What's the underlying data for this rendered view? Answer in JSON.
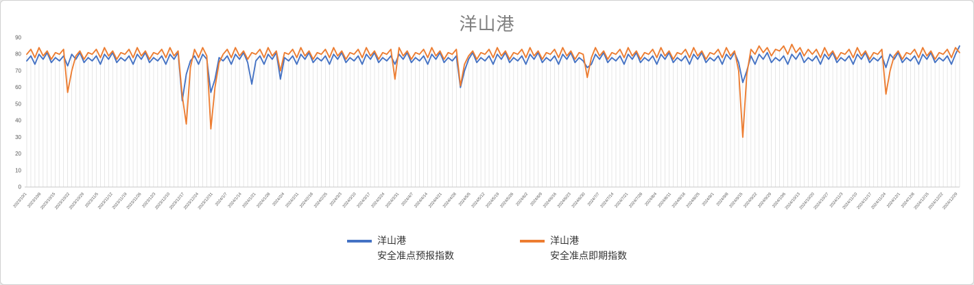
{
  "chart_data": {
    "type": "line",
    "title": "洋山港",
    "xlabel": "",
    "ylabel": "",
    "ylim": [
      0,
      90
    ],
    "y_ticks": [
      0,
      10,
      20,
      30,
      40,
      50,
      60,
      70,
      80,
      90
    ],
    "grid": "vertical-drop-lines-only",
    "legend_position": "bottom",
    "x_start": "2023/10/1",
    "x_step_days": 2,
    "x_tick_labels": [
      "2023/10/1",
      "2023/10/8",
      "2023/10/15",
      "2023/10/22",
      "2023/10/29",
      "2023/11/5",
      "2023/11/12",
      "2023/11/19",
      "2023/11/26",
      "2023/12/3",
      "2023/12/10",
      "2023/12/17",
      "2023/12/24",
      "2023/12/31",
      "2024/1/7",
      "2024/1/14",
      "2024/1/21",
      "2024/1/28",
      "2024/2/4",
      "2024/2/11",
      "2024/2/18",
      "2024/2/25",
      "2024/3/3",
      "2024/3/10",
      "2024/3/17",
      "2024/3/24",
      "2024/3/31",
      "2024/4/7",
      "2024/4/14",
      "2024/4/21",
      "2024/4/28",
      "2024/5/5",
      "2024/5/12",
      "2024/5/19",
      "2024/5/26",
      "2024/6/2",
      "2024/6/9",
      "2024/6/16",
      "2024/6/23",
      "2024/6/30",
      "2024/7/7",
      "2024/7/14",
      "2024/7/21",
      "2024/7/28",
      "2024/8/4",
      "2024/8/11",
      "2024/8/18",
      "2024/8/25",
      "2024/9/1",
      "2024/9/8",
      "2024/9/15",
      "2024/9/22",
      "2024/9/29",
      "2024/10/6",
      "2024/10/13",
      "2024/10/20",
      "2024/10/27",
      "2024/11/3",
      "2024/11/10",
      "2024/11/17",
      "2024/11/24",
      "2024/12/1",
      "2024/12/8",
      "2024/12/15",
      "2024/12/22",
      "2024/12/29"
    ],
    "series": [
      {
        "name": "洋山港 安全准点预报指数",
        "color": "#4472c4",
        "values": [
          76,
          79,
          74,
          80,
          77,
          81,
          75,
          78,
          76,
          79,
          73,
          80,
          77,
          81,
          75,
          78,
          76,
          79,
          74,
          80,
          77,
          81,
          75,
          78,
          76,
          79,
          74,
          80,
          77,
          81,
          75,
          78,
          76,
          79,
          74,
          80,
          77,
          81,
          52,
          68,
          76,
          79,
          74,
          80,
          77,
          57,
          65,
          78,
          76,
          79,
          74,
          80,
          77,
          81,
          75,
          62,
          76,
          79,
          74,
          80,
          77,
          81,
          65,
          78,
          76,
          79,
          74,
          80,
          77,
          81,
          75,
          78,
          76,
          79,
          74,
          80,
          77,
          81,
          75,
          78,
          76,
          79,
          74,
          80,
          77,
          81,
          75,
          78,
          76,
          79,
          74,
          80,
          77,
          81,
          75,
          78,
          76,
          79,
          74,
          80,
          77,
          81,
          75,
          78,
          76,
          79,
          60,
          70,
          77,
          81,
          75,
          78,
          76,
          79,
          74,
          80,
          77,
          81,
          75,
          78,
          76,
          79,
          74,
          80,
          77,
          81,
          75,
          78,
          76,
          79,
          74,
          80,
          77,
          81,
          75,
          78,
          76,
          72,
          74,
          80,
          77,
          81,
          75,
          78,
          76,
          79,
          74,
          80,
          77,
          81,
          75,
          78,
          76,
          79,
          74,
          80,
          77,
          81,
          75,
          78,
          76,
          79,
          74,
          80,
          77,
          81,
          75,
          78,
          76,
          79,
          74,
          80,
          77,
          81,
          75,
          63,
          70,
          79,
          74,
          80,
          77,
          81,
          75,
          78,
          76,
          79,
          74,
          80,
          77,
          81,
          75,
          78,
          76,
          79,
          74,
          80,
          77,
          81,
          75,
          78,
          76,
          79,
          74,
          80,
          77,
          81,
          75,
          78,
          76,
          79,
          72,
          80,
          77,
          81,
          75,
          78,
          76,
          79,
          74,
          80,
          77,
          81,
          75,
          78,
          76,
          79,
          74,
          80,
          85
        ]
      },
      {
        "name": "洋山港 安全准点即期指数",
        "color": "#ed7d31",
        "values": [
          80,
          83,
          78,
          84,
          79,
          82,
          77,
          81,
          80,
          83,
          57,
          70,
          79,
          82,
          77,
          81,
          80,
          83,
          78,
          84,
          79,
          82,
          77,
          81,
          80,
          83,
          78,
          84,
          79,
          82,
          77,
          81,
          80,
          83,
          78,
          84,
          79,
          82,
          55,
          38,
          72,
          83,
          78,
          84,
          79,
          35,
          60,
          75,
          80,
          83,
          78,
          84,
          79,
          82,
          77,
          81,
          80,
          83,
          78,
          84,
          79,
          82,
          70,
          81,
          80,
          83,
          78,
          84,
          79,
          82,
          77,
          81,
          80,
          83,
          78,
          84,
          79,
          82,
          77,
          81,
          80,
          83,
          78,
          84,
          79,
          82,
          77,
          81,
          80,
          83,
          65,
          84,
          79,
          82,
          77,
          81,
          80,
          83,
          78,
          84,
          79,
          82,
          77,
          81,
          80,
          83,
          61,
          74,
          79,
          82,
          77,
          81,
          80,
          83,
          78,
          84,
          79,
          82,
          77,
          81,
          80,
          83,
          78,
          84,
          79,
          82,
          77,
          81,
          80,
          83,
          78,
          84,
          79,
          82,
          77,
          81,
          80,
          66,
          78,
          84,
          79,
          82,
          77,
          81,
          80,
          83,
          78,
          84,
          79,
          82,
          77,
          81,
          80,
          83,
          78,
          84,
          79,
          82,
          77,
          81,
          80,
          83,
          78,
          84,
          79,
          82,
          77,
          81,
          80,
          83,
          78,
          84,
          79,
          82,
          70,
          30,
          68,
          83,
          80,
          85,
          81,
          84,
          79,
          83,
          82,
          85,
          80,
          86,
          81,
          84,
          79,
          83,
          80,
          83,
          78,
          84,
          79,
          82,
          77,
          81,
          80,
          83,
          78,
          84,
          79,
          82,
          77,
          81,
          80,
          83,
          56,
          70,
          79,
          82,
          77,
          81,
          80,
          83,
          78,
          84,
          79,
          82,
          77,
          81,
          80,
          83,
          78,
          84,
          81
        ]
      }
    ]
  },
  "legend": {
    "entries": [
      {
        "line1": "洋山港",
        "line2": "安全准点预报指数"
      },
      {
        "line1": "洋山港",
        "line2": "安全准点即期指数"
      }
    ]
  },
  "colors": {
    "forecast_series": "#4472c4",
    "spot_series": "#ed7d31",
    "title_text": "#7f7f7f",
    "axis_text": "#595959",
    "drop_line": "#dcdcdc",
    "axis_line": "#c9c9c9"
  }
}
